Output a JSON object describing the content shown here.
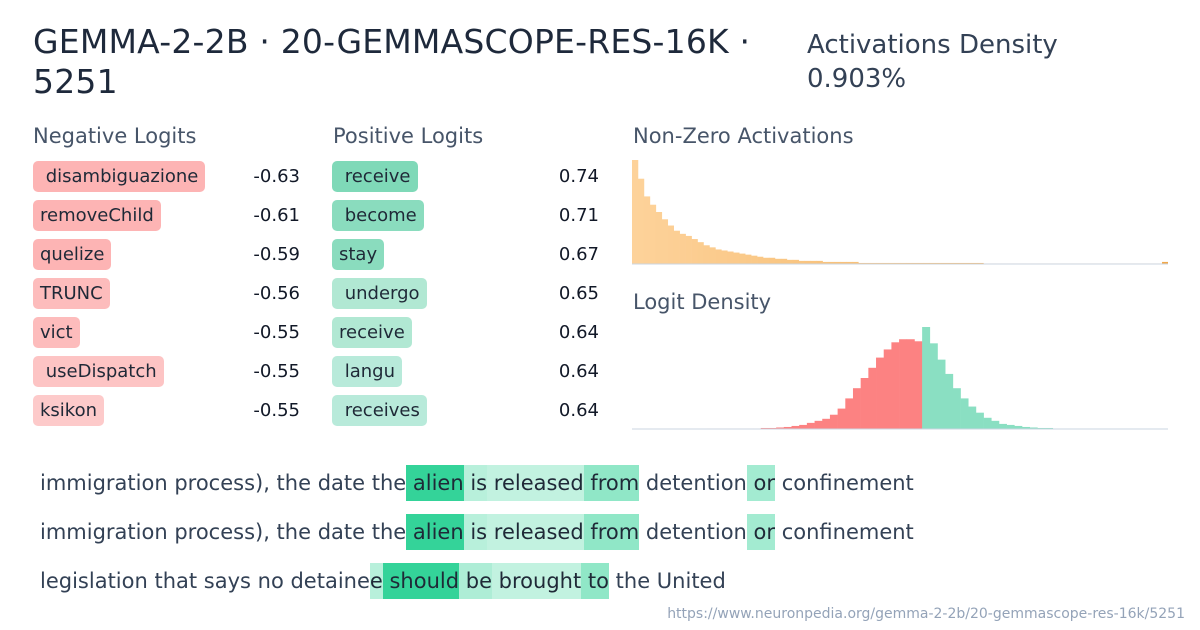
{
  "title": "GEMMA-2-2B · 20-GEMMASCOPE-RES-16K · 5251",
  "activations_density": {
    "label": "Activations Density",
    "value": "0.903%"
  },
  "negative_logits": {
    "title": "Negative Logits",
    "items": [
      {
        "token": " disambiguazione",
        "value": "-0.63",
        "color": "#fdb4b4"
      },
      {
        "token": "removeChild",
        "value": "-0.61",
        "color": "#fdb4b4"
      },
      {
        "token": "quelize",
        "value": "-0.59",
        "color": "#fdb4b4"
      },
      {
        "token": "TRUNC",
        "value": "-0.56",
        "color": "#fdbcbc"
      },
      {
        "token": "vict",
        "value": "-0.55",
        "color": "#fdbcbc"
      },
      {
        "token": " useDispatch",
        "value": "-0.55",
        "color": "#fdc4c4"
      },
      {
        "token": "ksikon",
        "value": "-0.55",
        "color": "#fdcaca"
      }
    ]
  },
  "positive_logits": {
    "title": "Positive Logits",
    "items": [
      {
        "token": " receive",
        "value": "0.74",
        "color": "#7fd9b8"
      },
      {
        "token": " become",
        "value": "0.71",
        "color": "#8adcbe"
      },
      {
        "token": "stay",
        "value": "0.67",
        "color": "#8adcbe"
      },
      {
        "token": " undergo",
        "value": "0.65",
        "color": "#b1e8d3"
      },
      {
        "token": "receive",
        "value": "0.64",
        "color": "#b1e8d3"
      },
      {
        "token": " langu",
        "value": "0.64",
        "color": "#b8eada"
      },
      {
        "token": " receives",
        "value": "0.64",
        "color": "#b8eada"
      }
    ]
  },
  "chart_data": [
    {
      "type": "bar",
      "title": "Non-Zero Activations",
      "color_start": "#fdd29a",
      "color_end": "#f0a84a",
      "values": [
        100,
        82,
        65,
        57,
        50,
        43,
        37,
        32,
        29,
        27,
        24,
        21,
        18,
        16,
        14,
        13,
        12,
        11,
        10,
        9,
        8,
        7,
        6,
        6,
        5,
        5,
        4,
        4,
        3,
        3,
        3,
        3,
        2,
        2,
        2,
        2,
        2,
        2,
        1,
        1,
        1,
        1,
        1,
        1,
        1,
        1,
        1,
        1,
        1,
        1,
        1,
        1,
        1,
        1,
        1,
        1,
        1,
        1,
        1,
        0.5,
        0.5,
        0.5,
        0.5,
        0.5,
        0.5,
        0.5,
        0.5,
        0.5,
        0.5,
        0.5,
        0.5,
        0.5,
        0.5,
        0.5,
        0.5,
        0.5,
        0.5,
        0.5,
        0.5,
        0.5,
        0.5,
        0.5,
        0.5,
        0.5,
        0.5,
        0.5,
        0.5,
        0.5,
        0.5,
        2
      ]
    },
    {
      "type": "bar",
      "title": "Logit Density",
      "negative_color": "#fc8282",
      "positive_color": "#8adfc2",
      "negative_values": [
        0.5,
        0.5,
        0.5,
        0.5,
        0.5,
        0.5,
        0.5,
        1,
        1,
        1.5,
        2,
        3,
        4,
        6,
        8,
        10,
        14,
        20,
        30,
        40,
        50,
        60,
        70,
        78,
        85,
        88,
        88,
        86
      ],
      "positive_values": [
        100,
        84,
        68,
        54,
        40,
        30,
        22,
        16,
        11,
        8,
        5,
        4,
        3,
        2,
        1.5,
        1,
        1,
        0.5,
        0.5,
        0.5,
        0.5,
        0.5,
        0.5,
        0.5,
        0.5,
        0.5,
        0.5,
        0.5,
        0.5,
        0.5,
        0.5,
        0.5
      ]
    }
  ],
  "examples": [
    {
      "tokens": [
        {
          "t": "immigration process), the date the",
          "a": 0
        },
        {
          "t": " alien",
          "a": 1.0
        },
        {
          "t": " is",
          "a": 0.35
        },
        {
          "t": " released",
          "a": 0.3
        },
        {
          "t": " from",
          "a": 0.55
        },
        {
          "t": " detention",
          "a": 0
        },
        {
          "t": " or",
          "a": 0.45
        },
        {
          "t": " confinement",
          "a": 0
        }
      ]
    },
    {
      "tokens": [
        {
          "t": "immigration process), the date the",
          "a": 0
        },
        {
          "t": " alien",
          "a": 1.0
        },
        {
          "t": " is",
          "a": 0.35
        },
        {
          "t": " released",
          "a": 0.3
        },
        {
          "t": " from",
          "a": 0.55
        },
        {
          "t": " detention",
          "a": 0
        },
        {
          "t": " or",
          "a": 0.45
        },
        {
          "t": " confinement",
          "a": 0
        }
      ]
    },
    {
      "tokens": [
        {
          "t": "legislation that says no detaine",
          "a": 0
        },
        {
          "t": "e",
          "a": 0.35
        },
        {
          "t": " should",
          "a": 1.0
        },
        {
          "t": " be",
          "a": 0.4
        },
        {
          "t": " brought",
          "a": 0.3
        },
        {
          "t": " to",
          "a": 0.55
        },
        {
          "t": " the United",
          "a": 0
        }
      ]
    }
  ],
  "url": "https://www.neuronpedia.org/gemma-2-2b/20-gemmascope-res-16k/5251"
}
